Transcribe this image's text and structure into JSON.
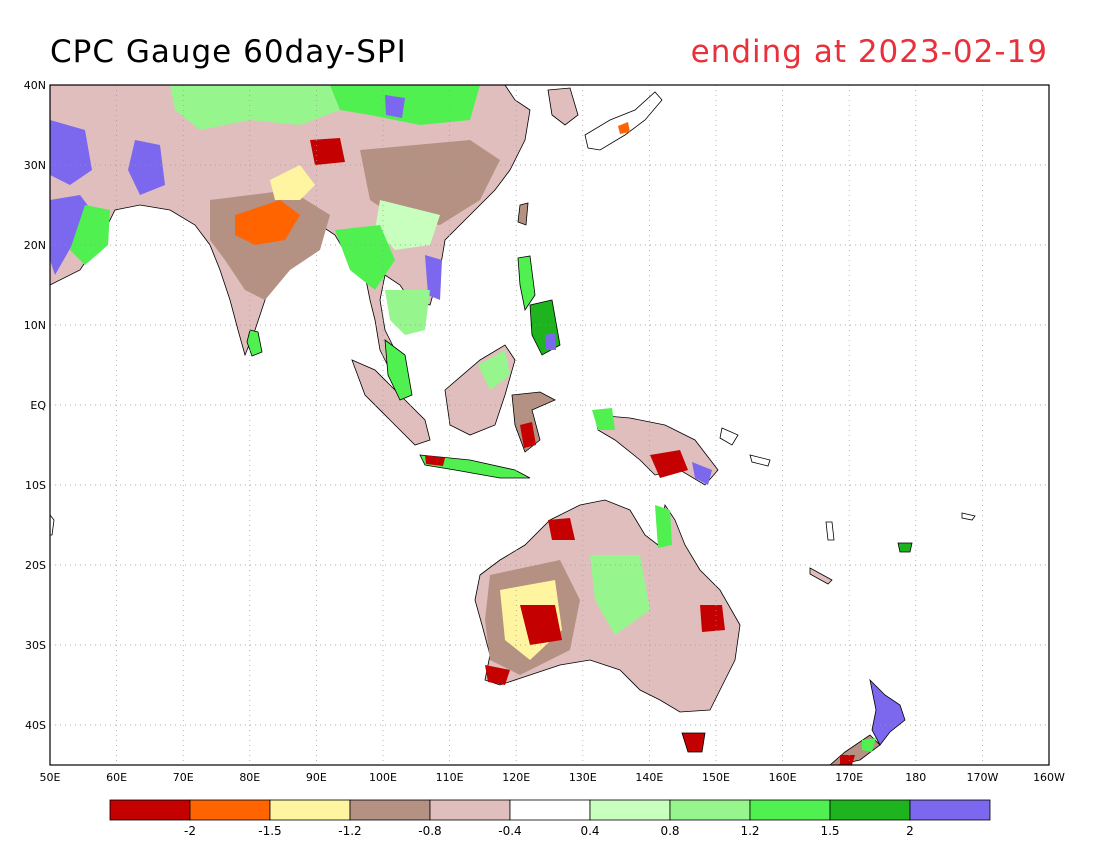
{
  "title": "CPC Gauge 60day-SPI",
  "subtitle": "ending at 2023-02-19",
  "colors": {
    "title": "#000000",
    "subtitle": "#e8313a",
    "land_outline": "#000000",
    "grid": "#999999"
  },
  "map": {
    "projection": "cylindrical",
    "lon_range": [
      50,
      200
    ],
    "lat_range": [
      -45,
      40
    ],
    "grid": "dotted",
    "lon_ticks": [
      "50E",
      "60E",
      "70E",
      "80E",
      "90E",
      "100E",
      "110E",
      "120E",
      "130E",
      "140E",
      "150E",
      "160E",
      "170E",
      "180",
      "170W",
      "160W"
    ],
    "lat_ticks": [
      "40N",
      "30N",
      "20N",
      "10N",
      "EQ",
      "10S",
      "20S",
      "30S",
      "40S"
    ]
  },
  "legend": {
    "placement": "bottom",
    "bins": [
      {
        "color": "#c40000"
      },
      {
        "color": "#ff6400"
      },
      {
        "color": "#fff5a0"
      },
      {
        "color": "#b49182"
      },
      {
        "color": "#e1bebe"
      },
      {
        "color": "#ffffff"
      },
      {
        "color": "#c8ffbe"
      },
      {
        "color": "#96f58c"
      },
      {
        "color": "#50f050"
      },
      {
        "color": "#1eb41e"
      },
      {
        "color": "#7b68ee"
      }
    ],
    "labels": [
      "-2",
      "-1.5",
      "-1.2",
      "-0.8",
      "-0.4",
      "0.4",
      "0.8",
      "1.2",
      "1.5",
      "2"
    ]
  }
}
